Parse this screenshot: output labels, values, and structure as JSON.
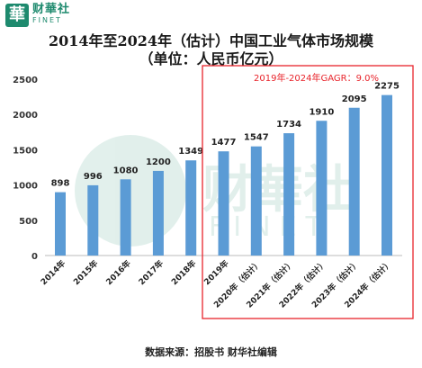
{
  "logo": {
    "glyph": "華",
    "cn": "财華社",
    "en": "FINET"
  },
  "title_line1": "2014年至2024年（估计）中国工业气体市场规模",
  "title_line2": "（单位：人民币亿元）",
  "source": "数据来源：招股书   财华社编辑",
  "highlight_label": "2019年-2024年GAGR：9.0%",
  "watermark": {
    "cn": "财華社",
    "en": "FINET"
  },
  "colors": {
    "bar": "#5b9bd5",
    "highlight": "#e8242b",
    "brand": "#1e8a6e"
  },
  "chart_data": {
    "type": "bar",
    "categories": [
      "2014年",
      "2015年",
      "2016年",
      "2017年",
      "2018年",
      "2019年",
      "2020年（估计）",
      "2021年（估计）",
      "2022年（估计）",
      "2023年（估计）",
      "2024年（估计）"
    ],
    "values": [
      898,
      996,
      1080,
      1200,
      1349,
      1477,
      1547,
      1734,
      1910,
      2095,
      2275
    ],
    "ylim": [
      0,
      2500
    ],
    "yticks": [
      0,
      500,
      1000,
      1500,
      2000,
      2500
    ],
    "grid": false,
    "legend": "none"
  }
}
